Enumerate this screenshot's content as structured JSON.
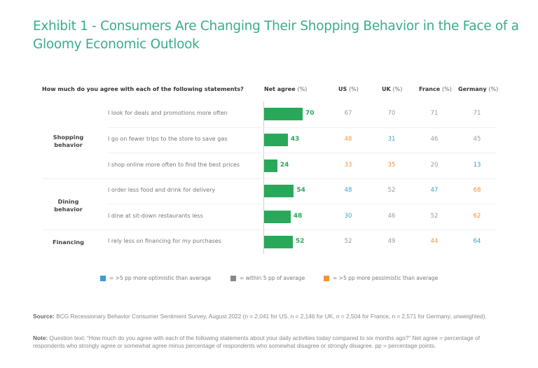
{
  "title": "Exhibit 1 - Consumers Are Changing Their Shopping Behavior in the Face of a Gloomy Economic Outlook",
  "colors": {
    "bar": "#29a85a",
    "optimistic": "#3a9fd1",
    "neutral": "#999999",
    "pessimistic": "#f0923a",
    "title": "#3bab8b"
  },
  "headers": {
    "question": "How much do you agree with each of the following statements?",
    "net_agree": "Net agree",
    "net_agree_unit": "(%)",
    "us": "US",
    "uk": "UK",
    "france": "France",
    "germany": "Germany",
    "unit": "(%)"
  },
  "groups": [
    {
      "label_line1": "Shopping",
      "label_line2": "behavior"
    },
    {
      "label_line1": "Dining",
      "label_line2": "behavior"
    },
    {
      "label_line1": "Financing",
      "label_line2": ""
    }
  ],
  "chart_data": {
    "type": "table",
    "title": "Exhibit 1 - Consumers Are Changing Their Shopping Behavior in the Face of a Gloomy Economic Outlook",
    "columns": [
      "Net agree (%)",
      "US (%)",
      "UK (%)",
      "France (%)",
      "Germany (%)"
    ],
    "xlim": [
      0,
      100
    ],
    "rows": [
      {
        "group": "Shopping behavior",
        "statement": "I look for deals and promotions more often",
        "net_agree": 70,
        "countries": [
          {
            "v": 67,
            "s": "neutral"
          },
          {
            "v": 70,
            "s": "neutral"
          },
          {
            "v": 71,
            "s": "neutral"
          },
          {
            "v": 71,
            "s": "neutral"
          }
        ]
      },
      {
        "group": "Shopping behavior",
        "statement": "I go on fewer trips to the store to save gas",
        "net_agree": 43,
        "countries": [
          {
            "v": 48,
            "s": "pessimistic"
          },
          {
            "v": 31,
            "s": "optimistic"
          },
          {
            "v": 46,
            "s": "neutral"
          },
          {
            "v": 45,
            "s": "neutral"
          }
        ]
      },
      {
        "group": "Shopping behavior",
        "statement": "I shop online more often to find the best prices",
        "net_agree": 24,
        "countries": [
          {
            "v": 33,
            "s": "pessimistic"
          },
          {
            "v": 35,
            "s": "pessimistic"
          },
          {
            "v": 20,
            "s": "neutral"
          },
          {
            "v": 13,
            "s": "optimistic"
          }
        ]
      },
      {
        "group": "Dining behavior",
        "statement": "I order less food and drink for delivery",
        "net_agree": 54,
        "countries": [
          {
            "v": 48,
            "s": "optimistic"
          },
          {
            "v": 52,
            "s": "neutral"
          },
          {
            "v": 47,
            "s": "optimistic"
          },
          {
            "v": 68,
            "s": "pessimistic"
          }
        ]
      },
      {
        "group": "Dining behavior",
        "statement": "I dine at sit-down restaurants less",
        "net_agree": 48,
        "countries": [
          {
            "v": 30,
            "s": "optimistic"
          },
          {
            "v": 46,
            "s": "neutral"
          },
          {
            "v": 52,
            "s": "neutral"
          },
          {
            "v": 62,
            "s": "pessimistic"
          }
        ]
      },
      {
        "group": "Financing",
        "statement": "I rely less on financing for my purchases",
        "net_agree": 52,
        "countries": [
          {
            "v": 52,
            "s": "neutral"
          },
          {
            "v": 49,
            "s": "neutral"
          },
          {
            "v": 44,
            "s": "pessimistic"
          },
          {
            "v": 64,
            "s": "optimistic"
          }
        ]
      }
    ],
    "legend": [
      {
        "key": "optimistic",
        "label": "= >5 pp more optimistic than average"
      },
      {
        "key": "neutral",
        "label": "= within 5 pp of average"
      },
      {
        "key": "pessimistic",
        "label": "= >5 pp more pessimistic than average"
      }
    ]
  },
  "legend": {
    "optimistic": "= >5 pp more optimistic than average",
    "neutral": "= within 5 pp of average",
    "pessimistic": "= >5 pp more pessimistic than average"
  },
  "footer": {
    "source_label": "Source:",
    "source_text": " BCG Recessionary Behavior Consumer Sentiment Survey, August 2022 (n = 2,041 for US, n = 2,146 for UK, n = 2,504 for France, n = 2,571 for Germany; unweighted).",
    "note_label": "Note:",
    "note_text": " Question text: “How much do you agree with each of the following statements about your daily activities today compared to six months ago?” Net agree = percentage of respondents who strongly agree or somewhat agree minus percentage of respondents who somewhat disagree or strongly disagree. pp = percentage points."
  }
}
